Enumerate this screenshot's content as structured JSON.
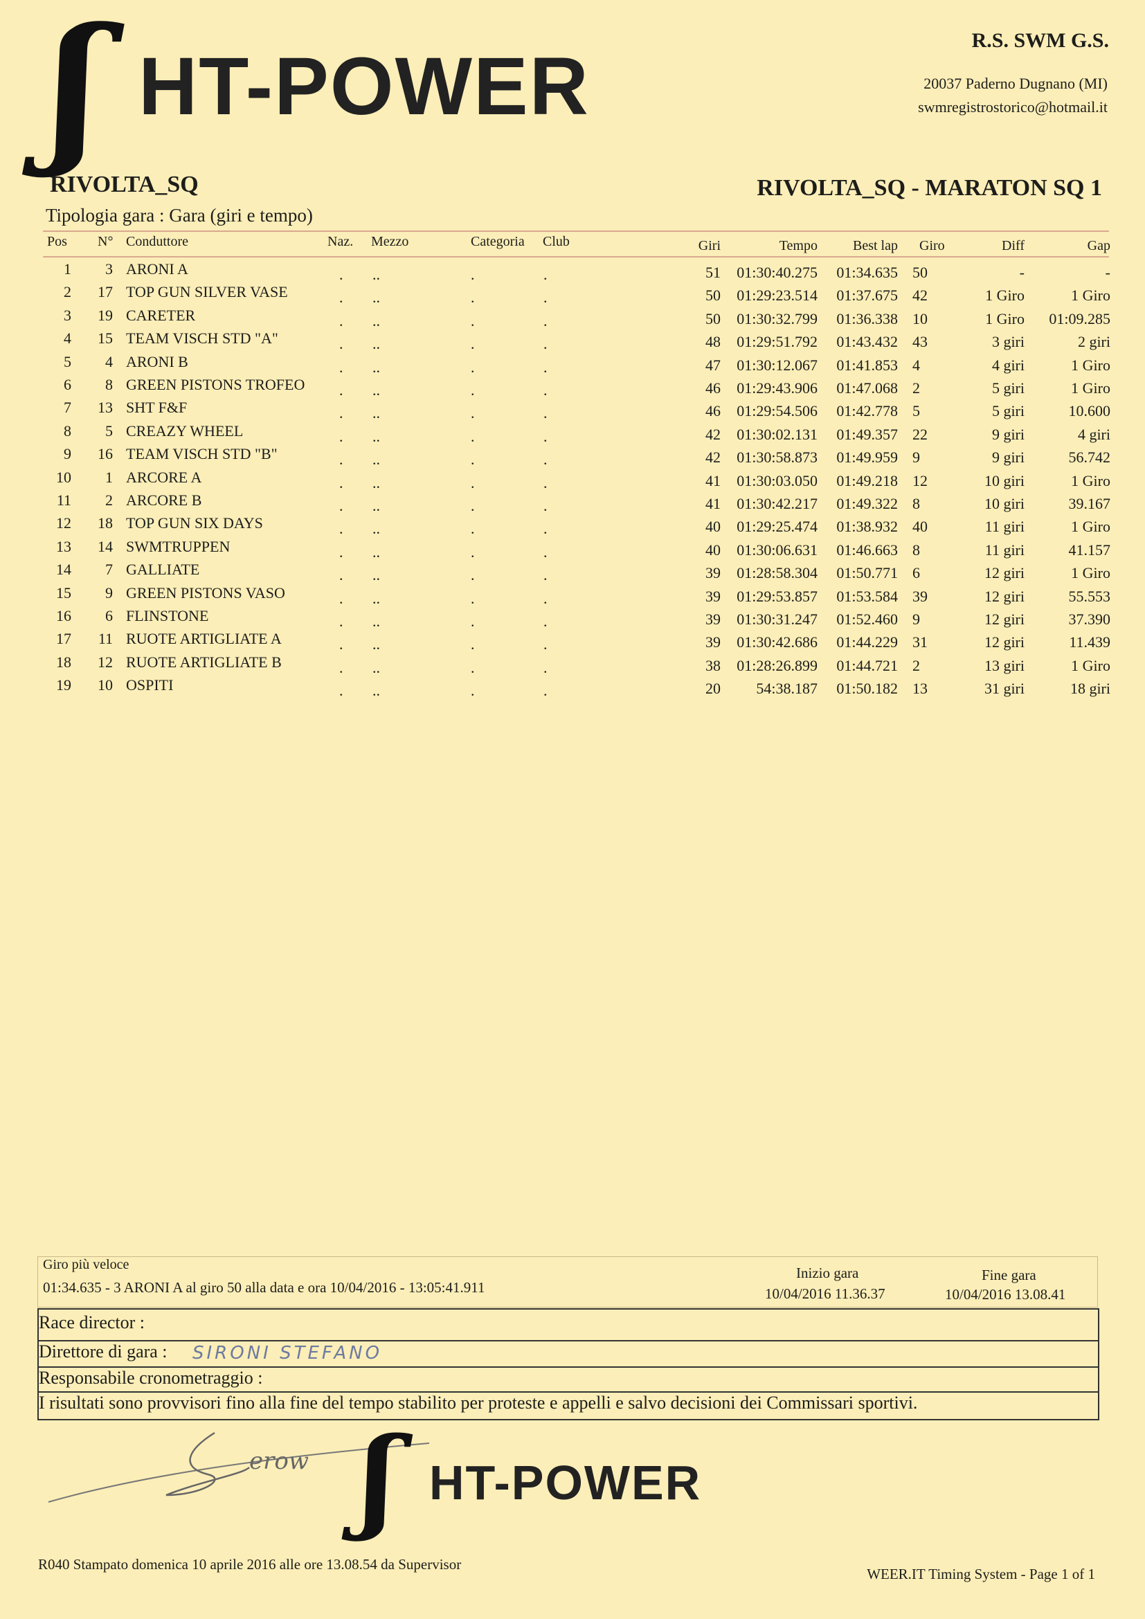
{
  "header": {
    "logo_text": "HT-POWER",
    "org_name": "R.S. SWM G.S.",
    "org_address": "20037 Paderno Dugnano (MI)",
    "org_email": "swmregistrostorico@hotmail.it",
    "event": "RIVOLTA_SQ",
    "race_title": "RIVOLTA_SQ - MARATON SQ 1",
    "race_type": "Tipologia gara : Gara (giri e tempo)"
  },
  "table": {
    "columns": [
      "Pos",
      "N°",
      "Conduttore",
      "Naz.",
      "Mezzo",
      "Categoria",
      "Club",
      "Giri",
      "Tempo",
      "Best lap",
      "Giro",
      "Diff",
      "Gap"
    ],
    "rows": [
      [
        "1",
        "3",
        "ARONI A",
        ".",
        "..",
        ".",
        ".",
        "51",
        "01:30:40.275",
        "01:34.635",
        "50",
        "-",
        "-"
      ],
      [
        "2",
        "17",
        "TOP GUN SILVER VASE",
        ".",
        "..",
        ".",
        ".",
        "50",
        "01:29:23.514",
        "01:37.675",
        "42",
        "1 Giro",
        "1 Giro"
      ],
      [
        "3",
        "19",
        "CARETER",
        ".",
        "..",
        ".",
        ".",
        "50",
        "01:30:32.799",
        "01:36.338",
        "10",
        "1 Giro",
        "01:09.285"
      ],
      [
        "4",
        "15",
        "TEAM VISCH STD \"A\"",
        ".",
        "..",
        ".",
        ".",
        "48",
        "01:29:51.792",
        "01:43.432",
        "43",
        "3 giri",
        "2 giri"
      ],
      [
        "5",
        "4",
        "ARONI B",
        ".",
        "..",
        ".",
        ".",
        "47",
        "01:30:12.067",
        "01:41.853",
        "4",
        "4 giri",
        "1 Giro"
      ],
      [
        "6",
        "8",
        "GREEN PISTONS TROFEO",
        ".",
        "..",
        ".",
        ".",
        "46",
        "01:29:43.906",
        "01:47.068",
        "2",
        "5 giri",
        "1 Giro"
      ],
      [
        "7",
        "13",
        "SHT F&F",
        ".",
        "..",
        ".",
        ".",
        "46",
        "01:29:54.506",
        "01:42.778",
        "5",
        "5 giri",
        "10.600"
      ],
      [
        "8",
        "5",
        "CREAZY WHEEL",
        ".",
        "..",
        ".",
        ".",
        "42",
        "01:30:02.131",
        "01:49.357",
        "22",
        "9 giri",
        "4 giri"
      ],
      [
        "9",
        "16",
        "TEAM VISCH STD \"B\"",
        ".",
        "..",
        ".",
        ".",
        "42",
        "01:30:58.873",
        "01:49.959",
        "9",
        "9 giri",
        "56.742"
      ],
      [
        "10",
        "1",
        "ARCORE A",
        ".",
        "..",
        ".",
        ".",
        "41",
        "01:30:03.050",
        "01:49.218",
        "12",
        "10 giri",
        "1 Giro"
      ],
      [
        "11",
        "2",
        "ARCORE B",
        ".",
        "..",
        ".",
        ".",
        "41",
        "01:30:42.217",
        "01:49.322",
        "8",
        "10 giri",
        "39.167"
      ],
      [
        "12",
        "18",
        "TOP GUN SIX DAYS",
        ".",
        "..",
        ".",
        ".",
        "40",
        "01:29:25.474",
        "01:38.932",
        "40",
        "11 giri",
        "1 Giro"
      ],
      [
        "13",
        "14",
        "SWMTRUPPEN",
        ".",
        "..",
        ".",
        ".",
        "40",
        "01:30:06.631",
        "01:46.663",
        "8",
        "11 giri",
        "41.157"
      ],
      [
        "14",
        "7",
        "GALLIATE",
        ".",
        "..",
        ".",
        ".",
        "39",
        "01:28:58.304",
        "01:50.771",
        "6",
        "12 giri",
        "1 Giro"
      ],
      [
        "15",
        "9",
        "GREEN PISTONS VASO",
        ".",
        "..",
        ".",
        ".",
        "39",
        "01:29:53.857",
        "01:53.584",
        "39",
        "12 giri",
        "55.553"
      ],
      [
        "16",
        "6",
        "FLINSTONE",
        ".",
        "..",
        ".",
        ".",
        "39",
        "01:30:31.247",
        "01:52.460",
        "9",
        "12 giri",
        "37.390"
      ],
      [
        "17",
        "11",
        "RUOTE ARTIGLIATE A",
        ".",
        "..",
        ".",
        ".",
        "39",
        "01:30:42.686",
        "01:44.229",
        "31",
        "12 giri",
        "11.439"
      ],
      [
        "18",
        "12",
        "RUOTE ARTIGLIATE B",
        ".",
        "..",
        ".",
        ".",
        "38",
        "01:28:26.899",
        "01:44.721",
        "2",
        "13 giri",
        "1 Giro"
      ],
      [
        "19",
        "10",
        "OSPITI",
        ".",
        "..",
        ".",
        ".",
        "20",
        "54:38.187",
        "01:50.182",
        "13",
        "31 giri",
        "18 giri"
      ]
    ]
  },
  "footer": {
    "fastest_lap_label": "Giro più veloce",
    "fastest_lap_text": "01:34.635 - 3 ARONI A  al giro 50 alla data e ora 10/04/2016 - 13:05:41.911",
    "start_label": "Inizio gara",
    "start_value": "10/04/2016 11.36.37",
    "end_label": "Fine gara",
    "end_value": "10/04/2016 13.08.41",
    "race_director_label": "Race director :",
    "direttore_label": "Direttore di gara :",
    "direttore_handwritten": "SIRONI STEFANO",
    "cronometraggio_label": "Responsabile cronometraggio :",
    "disclaimer": "I risultati sono provvisori fino alla fine del tempo stabilito per proteste e appelli e salvo decisioni dei Commissari sportivi.",
    "signature": "Sironi",
    "logo_text": "HT-POWER",
    "printed": "R040  Stampato domenica 10 aprile 2016 alle ore 13.08.54    da Supervisor",
    "page_info": "WEER.IT  Timing System - Page 1 of 1"
  }
}
